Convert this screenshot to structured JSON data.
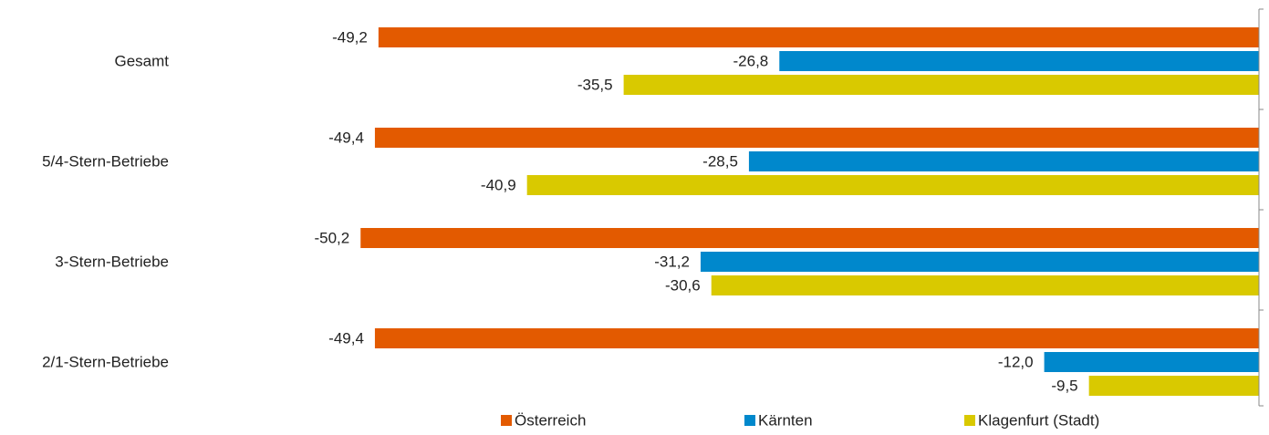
{
  "chart_data": {
    "type": "bar",
    "orientation": "horizontal",
    "categories": [
      "Gesamt",
      "5/4-Stern-Betriebe",
      "3-Stern-Betriebe",
      "2/1-Stern-Betriebe"
    ],
    "series": [
      {
        "name": "Österreich",
        "color": "#e35a00",
        "values": [
          -49.2,
          -49.4,
          -50.2,
          -49.4
        ],
        "value_labels": [
          "-49,2",
          "-49,4",
          "-50,2",
          "-49,4"
        ]
      },
      {
        "name": "Kärnten",
        "color": "#0088cc",
        "values": [
          -26.8,
          -28.5,
          -31.2,
          -12.0
        ],
        "value_labels": [
          "-26,8",
          "-28,5",
          "-31,2",
          "-12,0"
        ]
      },
      {
        "name": "Klagenfurt (Stadt)",
        "color": "#d9c900",
        "values": [
          -35.5,
          -40.9,
          -30.6,
          -9.5
        ],
        "value_labels": [
          "-35,5",
          "-40,9",
          "-30,6",
          "-9,5"
        ]
      }
    ],
    "xlim": [
      -60,
      0
    ],
    "legend": "bottom"
  }
}
